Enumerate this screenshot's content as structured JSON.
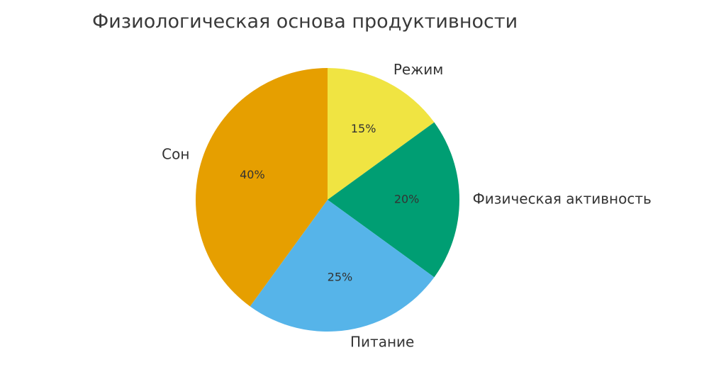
{
  "chart_data": {
    "type": "pie",
    "title": "Физиологическая основа продуктивности",
    "categories": [
      "Режим",
      "Физическая активность",
      "Питание",
      "Сон"
    ],
    "values": [
      15,
      20,
      25,
      40
    ],
    "percent_labels": [
      "15%",
      "20%",
      "25%",
      "40%"
    ],
    "colors": [
      "#f0e442",
      "#009e73",
      "#56b4e9",
      "#e69f00"
    ],
    "start_angle_deg": 90,
    "direction": "clockwise",
    "legend": "none"
  }
}
